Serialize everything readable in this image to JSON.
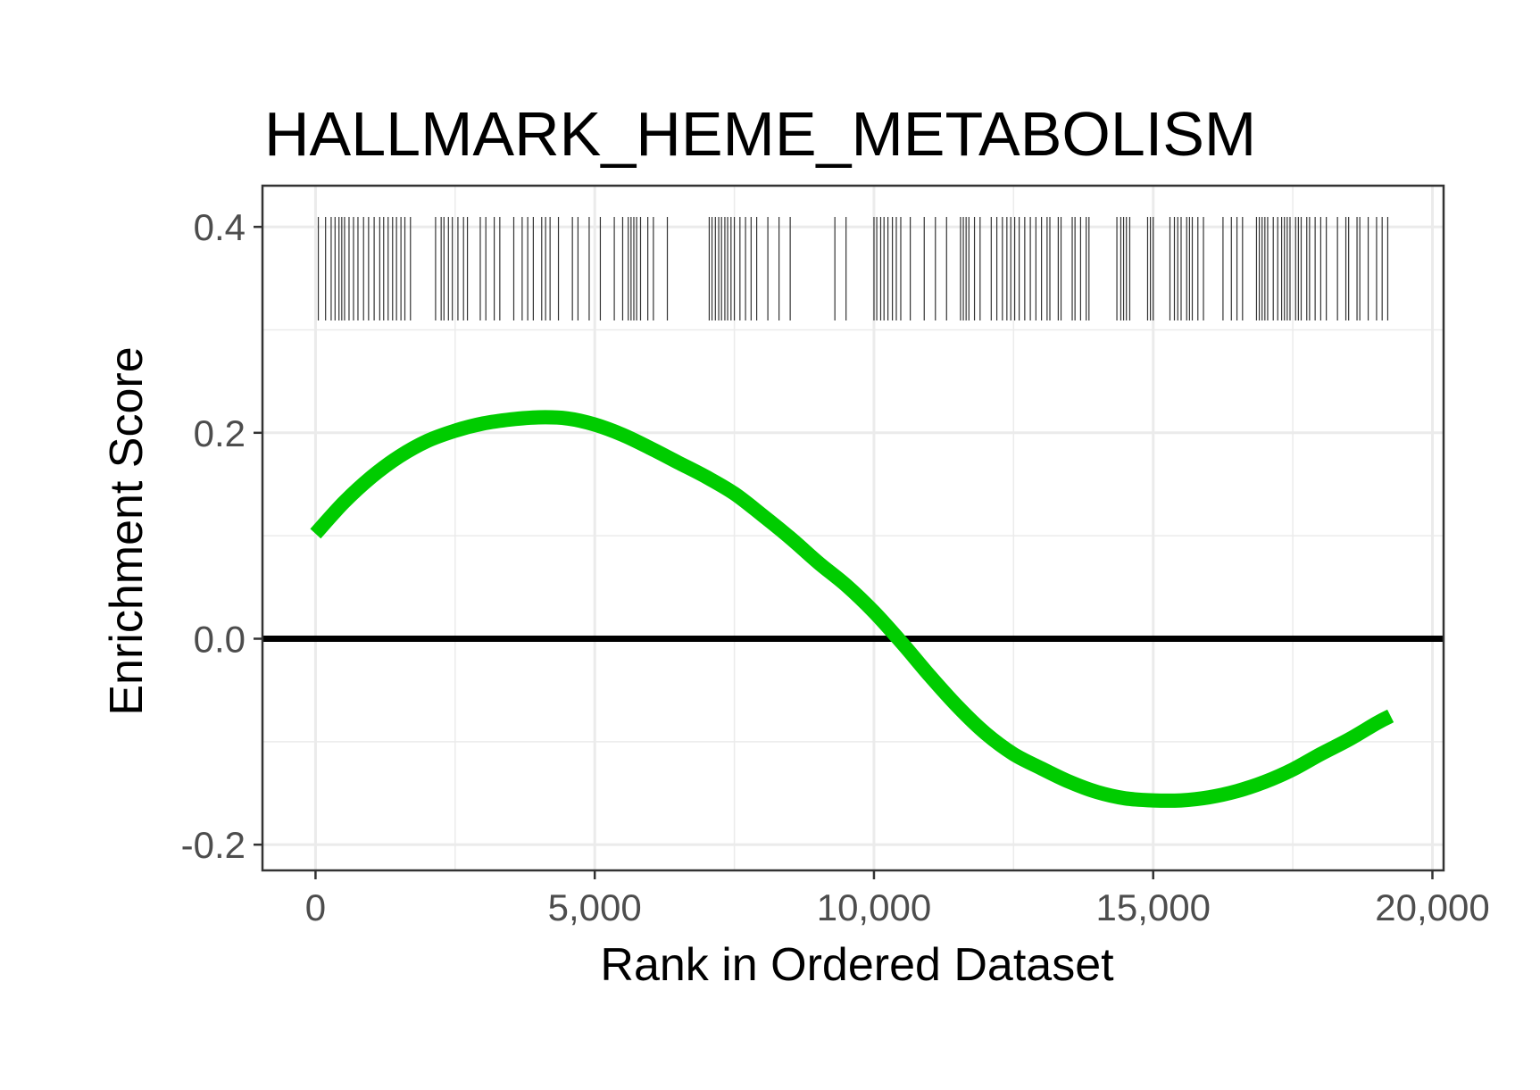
{
  "chart_data": {
    "type": "line",
    "title": "HALLMARK_HEME_METABOLISM",
    "xlabel": "Rank in Ordered Dataset",
    "ylabel": "Enrichment Score",
    "xlim": [
      -950,
      20200
    ],
    "ylim": [
      -0.225,
      0.44
    ],
    "x_ticks": [
      0,
      5000,
      10000,
      15000,
      20000
    ],
    "x_tick_labels": [
      "0",
      "5,000",
      "10,000",
      "15,000",
      "20,000"
    ],
    "y_ticks": [
      -0.2,
      0.0,
      0.2,
      0.4
    ],
    "y_tick_labels": [
      "-0.2",
      "0.0",
      "0.2",
      "0.4"
    ],
    "grid": true,
    "zero_line": 0.0,
    "series": [
      {
        "color": "#00cc00",
        "x": [
          0,
          500,
          1000,
          1500,
          2000,
          2500,
          3000,
          3500,
          4000,
          4500,
          5000,
          5500,
          6000,
          6500,
          7000,
          7500,
          8000,
          8500,
          9000,
          9500,
          10000,
          10500,
          11000,
          11500,
          12000,
          12500,
          13000,
          13500,
          14000,
          14500,
          15000,
          15500,
          16000,
          16500,
          17000,
          17500,
          18000,
          18500,
          19000,
          19250
        ],
        "values": [
          0.102,
          0.132,
          0.157,
          0.177,
          0.192,
          0.202,
          0.209,
          0.213,
          0.215,
          0.214,
          0.208,
          0.198,
          0.185,
          0.171,
          0.157,
          0.141,
          0.12,
          0.098,
          0.074,
          0.052,
          0.026,
          -0.004,
          -0.036,
          -0.066,
          -0.092,
          -0.112,
          -0.126,
          -0.139,
          -0.149,
          -0.155,
          -0.157,
          -0.157,
          -0.154,
          -0.148,
          -0.139,
          -0.127,
          -0.112,
          -0.098,
          -0.082,
          -0.075
        ]
      }
    ],
    "hits": [
      50,
      180,
      280,
      350,
      420,
      470,
      520,
      600,
      680,
      760,
      860,
      950,
      1050,
      1150,
      1220,
      1300,
      1380,
      1450,
      1530,
      1600,
      1700,
      2150,
      2250,
      2300,
      2380,
      2450,
      2550,
      2650,
      2720,
      2950,
      3050,
      3200,
      3300,
      3550,
      3700,
      3800,
      3900,
      4050,
      4120,
      4200,
      4350,
      4600,
      4700,
      4900,
      5100,
      5350,
      5500,
      5600,
      5650,
      5700,
      5750,
      5820,
      5950,
      6050,
      6300,
      7050,
      7100,
      7160,
      7220,
      7270,
      7330,
      7380,
      7440,
      7500,
      7600,
      7700,
      7800,
      7900,
      8100,
      8300,
      8500,
      9300,
      9500,
      10000,
      10050,
      10120,
      10180,
      10250,
      10330,
      10400,
      10480,
      10650,
      10900,
      11100,
      11300,
      11550,
      11600,
      11650,
      11700,
      11800,
      11900,
      12100,
      12200,
      12300,
      12380,
      12450,
      12520,
      12600,
      12700,
      12800,
      12900,
      13000,
      13100,
      13150,
      13300,
      13350,
      13550,
      13600,
      13700,
      13800,
      13850,
      14350,
      14420,
      14470,
      14520,
      14580,
      14900,
      14950,
      15000,
      15300,
      15380,
      15440,
      15500,
      15600,
      15650,
      15700,
      15800,
      15900,
      16250,
      16400,
      16500,
      16600,
      16850,
      16900,
      16950,
      17000,
      17050,
      17150,
      17230,
      17300,
      17350,
      17400,
      17450,
      17550,
      17600,
      17650,
      17750,
      17800,
      17900,
      18000,
      18100,
      18300,
      18450,
      18500,
      18650,
      18700,
      18850,
      19000,
      19100,
      19200
    ]
  }
}
